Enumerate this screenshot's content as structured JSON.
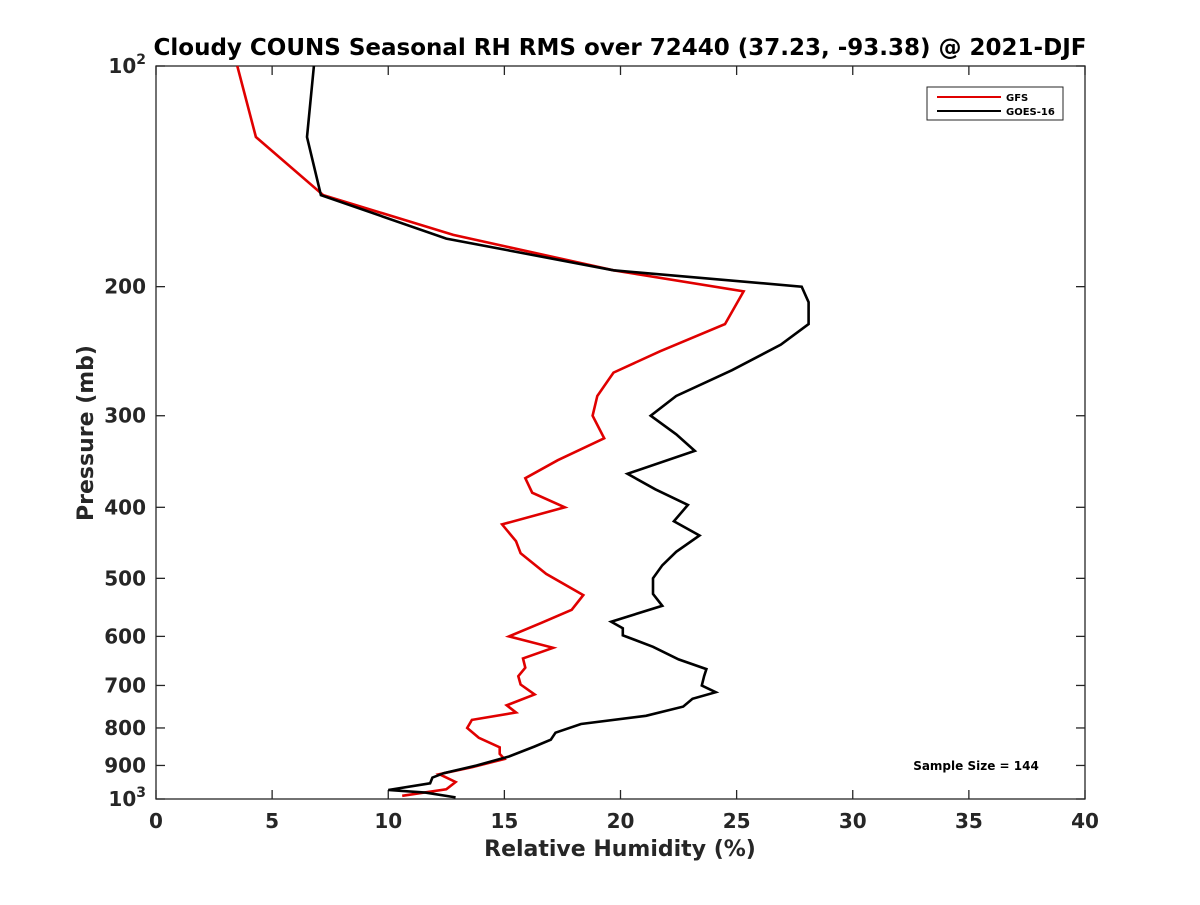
{
  "chart_data": {
    "type": "line",
    "title": "Cloudy COUNS Seasonal RH RMS over 72440 (37.23, -93.38) @ 2021-DJF",
    "xlabel": "Relative Humidity (%)",
    "ylabel": "Pressure (mb)",
    "xlim": [
      0,
      40
    ],
    "ylim": [
      100,
      1000
    ],
    "yscale": "log",
    "y_reversed": true,
    "x_ticks": [
      {
        "value": 0,
        "label": "0"
      },
      {
        "value": 5,
        "label": "5"
      },
      {
        "value": 10,
        "label": "10"
      },
      {
        "value": 15,
        "label": "15"
      },
      {
        "value": 20,
        "label": "20"
      },
      {
        "value": 25,
        "label": "25"
      },
      {
        "value": 30,
        "label": "30"
      },
      {
        "value": 35,
        "label": "35"
      },
      {
        "value": 40,
        "label": "40"
      }
    ],
    "y_ticks": [
      {
        "value": 100,
        "base": "10",
        "exp": "2"
      },
      {
        "value": 200,
        "label": "200"
      },
      {
        "value": 300,
        "label": "300"
      },
      {
        "value": 400,
        "label": "400"
      },
      {
        "value": 500,
        "label": "500"
      },
      {
        "value": 600,
        "label": "600"
      },
      {
        "value": 700,
        "label": "700"
      },
      {
        "value": 800,
        "label": "800"
      },
      {
        "value": 900,
        "label": "900"
      },
      {
        "value": 1000,
        "base": "10",
        "exp": "3"
      }
    ],
    "series": [
      {
        "name": "GFS",
        "color": "#e00000",
        "points": [
          [
            3.5,
            100
          ],
          [
            4.3,
            125
          ],
          [
            7.2,
            150
          ],
          [
            12.8,
            170
          ],
          [
            19.7,
            190
          ],
          [
            25.3,
            203
          ],
          [
            24.5,
            225
          ],
          [
            21.7,
            245
          ],
          [
            19.7,
            262
          ],
          [
            19.0,
            282
          ],
          [
            18.8,
            300
          ],
          [
            19.3,
            322
          ],
          [
            17.3,
            345
          ],
          [
            15.9,
            365
          ],
          [
            16.2,
            382
          ],
          [
            17.6,
            400
          ],
          [
            14.9,
            422
          ],
          [
            15.5,
            445
          ],
          [
            15.7,
            462
          ],
          [
            16.8,
            493
          ],
          [
            18.4,
            527
          ],
          [
            17.9,
            552
          ],
          [
            16.6,
            575
          ],
          [
            15.2,
            600
          ],
          [
            17.1,
            622
          ],
          [
            15.8,
            643
          ],
          [
            15.9,
            662
          ],
          [
            15.6,
            680
          ],
          [
            15.7,
            698
          ],
          [
            16.3,
            720
          ],
          [
            15.1,
            745
          ],
          [
            15.5,
            762
          ],
          [
            13.6,
            780
          ],
          [
            13.4,
            800
          ],
          [
            13.9,
            825
          ],
          [
            14.8,
            850
          ],
          [
            14.8,
            868
          ],
          [
            15.0,
            882
          ],
          [
            13.6,
            905
          ],
          [
            12.2,
            925
          ],
          [
            12.9,
            948
          ],
          [
            12.5,
            970
          ],
          [
            10.6,
            990
          ]
        ]
      },
      {
        "name": "GOES-16",
        "color": "#000000",
        "points": [
          [
            6.8,
            100
          ],
          [
            6.5,
            125
          ],
          [
            7.1,
            150
          ],
          [
            12.5,
            172
          ],
          [
            19.7,
            190
          ],
          [
            27.8,
            200
          ],
          [
            28.1,
            210
          ],
          [
            28.1,
            225
          ],
          [
            26.9,
            240
          ],
          [
            24.8,
            260
          ],
          [
            22.4,
            282
          ],
          [
            21.3,
            300
          ],
          [
            22.4,
            318
          ],
          [
            23.2,
            335
          ],
          [
            20.3,
            360
          ],
          [
            21.5,
            378
          ],
          [
            22.9,
            397
          ],
          [
            22.3,
            418
          ],
          [
            23.4,
            437
          ],
          [
            22.4,
            460
          ],
          [
            21.8,
            480
          ],
          [
            21.4,
            500
          ],
          [
            21.4,
            525
          ],
          [
            21.8,
            545
          ],
          [
            19.6,
            573
          ],
          [
            20.1,
            585
          ],
          [
            20.1,
            598
          ],
          [
            21.4,
            620
          ],
          [
            22.5,
            645
          ],
          [
            23.7,
            665
          ],
          [
            23.6,
            680
          ],
          [
            23.5,
            700
          ],
          [
            24.1,
            715
          ],
          [
            23.1,
            730
          ],
          [
            22.7,
            748
          ],
          [
            21.1,
            770
          ],
          [
            18.3,
            790
          ],
          [
            17.2,
            812
          ],
          [
            17.0,
            830
          ],
          [
            16.3,
            848
          ],
          [
            15.2,
            875
          ],
          [
            13.8,
            900
          ],
          [
            12.4,
            922
          ],
          [
            11.9,
            935
          ],
          [
            11.8,
            952
          ],
          [
            10.0,
            972
          ],
          [
            11.6,
            980
          ],
          [
            12.9,
            995
          ]
        ]
      }
    ],
    "legend": {
      "position": "top-right",
      "entries": [
        "GFS",
        "GOES-16"
      ]
    },
    "annotations": [
      "Sample Size = 144"
    ]
  }
}
